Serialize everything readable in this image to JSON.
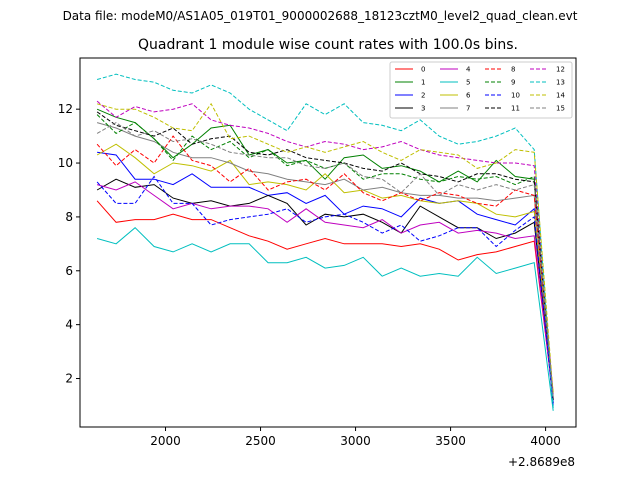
{
  "chart_data": {
    "type": "line",
    "suptitle": "Data file: modeM0/AS1A05_019T01_9000002688_18123cztM0_level2_quad_clean.evt",
    "title": "Quadrant 1 module wise count rates with 100.0s bins.",
    "xlabel": "",
    "ylabel": "",
    "x_offset_label": "+2.8689e8",
    "xlim": [
      1550,
      4160
    ],
    "ylim": [
      0.2,
      13.9
    ],
    "xticks": [
      2000,
      2500,
      3000,
      3500,
      4000
    ],
    "yticks": [
      2,
      4,
      6,
      8,
      10,
      12
    ],
    "x": [
      1640,
      1740,
      1840,
      1940,
      2040,
      2140,
      2240,
      2340,
      2440,
      2540,
      2640,
      2740,
      2840,
      2940,
      3040,
      3140,
      3240,
      3340,
      3440,
      3540,
      3640,
      3740,
      3840,
      3940,
      4040
    ],
    "legend_location": "upper right",
    "series": [
      {
        "name": "0",
        "color": "#ff0000",
        "dashed": false,
        "values": [
          8.6,
          7.8,
          7.9,
          7.9,
          8.1,
          7.9,
          7.9,
          7.6,
          7.3,
          7.1,
          6.8,
          7.0,
          7.2,
          7.0,
          7.0,
          7.0,
          6.9,
          7.0,
          6.8,
          6.4,
          6.6,
          6.7,
          6.9,
          7.1,
          1.3
        ]
      },
      {
        "name": "1",
        "color": "#008000",
        "dashed": false,
        "values": [
          12.0,
          11.7,
          11.5,
          10.9,
          10.2,
          10.7,
          11.3,
          11.4,
          10.3,
          10.5,
          10.0,
          10.1,
          9.4,
          10.2,
          10.3,
          9.8,
          9.9,
          9.7,
          9.3,
          9.7,
          9.3,
          10.1,
          9.5,
          9.4,
          1.1
        ]
      },
      {
        "name": "2",
        "color": "#0000ff",
        "dashed": false,
        "values": [
          10.4,
          10.3,
          9.4,
          9.4,
          9.2,
          9.6,
          9.1,
          9.1,
          9.1,
          8.8,
          8.9,
          8.5,
          8.8,
          8.1,
          8.4,
          8.3,
          8.0,
          8.7,
          8.5,
          8.6,
          8.1,
          7.9,
          7.7,
          8.3,
          1.0
        ]
      },
      {
        "name": "3",
        "color": "#000000",
        "dashed": false,
        "values": [
          9.0,
          9.4,
          9.1,
          9.2,
          8.7,
          8.5,
          8.6,
          8.4,
          8.5,
          8.8,
          8.5,
          7.7,
          8.1,
          8.0,
          8.1,
          7.8,
          7.4,
          8.4,
          8.0,
          7.6,
          7.6,
          7.2,
          7.4,
          7.8,
          1.2
        ]
      },
      {
        "name": "4",
        "color": "#bf00bf",
        "dashed": false,
        "values": [
          9.2,
          9.0,
          9.3,
          8.8,
          8.3,
          8.5,
          8.3,
          8.4,
          8.4,
          8.3,
          7.8,
          8.3,
          7.8,
          7.7,
          7.6,
          7.9,
          7.4,
          7.7,
          7.8,
          7.4,
          7.5,
          7.4,
          7.2,
          7.3,
          1.2
        ]
      },
      {
        "name": "5",
        "color": "#00bfbf",
        "dashed": false,
        "values": [
          7.2,
          7.0,
          7.6,
          6.9,
          6.7,
          7.0,
          6.7,
          7.0,
          7.0,
          6.3,
          6.3,
          6.5,
          6.1,
          6.2,
          6.5,
          5.8,
          6.1,
          5.8,
          5.9,
          5.8,
          6.5,
          5.9,
          6.1,
          6.3,
          0.8
        ]
      },
      {
        "name": "6",
        "color": "#bfbf00",
        "dashed": false,
        "values": [
          10.3,
          10.7,
          10.2,
          9.6,
          10.0,
          9.9,
          9.7,
          10.1,
          9.2,
          9.3,
          9.2,
          9.0,
          9.6,
          8.9,
          9.0,
          8.7,
          8.8,
          8.6,
          8.5,
          8.6,
          8.5,
          8.1,
          8.0,
          8.2,
          1.5
        ]
      },
      {
        "name": "7",
        "color": "#808080",
        "dashed": false,
        "values": [
          11.5,
          11.3,
          11.0,
          10.8,
          10.4,
          10.2,
          10.2,
          10.0,
          9.7,
          9.6,
          9.4,
          9.3,
          9.2,
          9.4,
          9.0,
          9.1,
          8.9,
          8.8,
          8.8,
          8.7,
          8.7,
          8.6,
          8.7,
          8.8,
          1.3
        ]
      },
      {
        "name": "8",
        "color": "#ff0000",
        "dashed": true,
        "values": [
          10.7,
          9.9,
          10.5,
          10.0,
          11.0,
          10.1,
          9.9,
          9.3,
          9.8,
          9.0,
          9.3,
          9.4,
          9.0,
          9.6,
          8.9,
          8.6,
          8.9,
          8.6,
          8.9,
          8.8,
          8.5,
          8.4,
          9.0,
          8.8,
          1.4
        ]
      },
      {
        "name": "9",
        "color": "#008000",
        "dashed": true,
        "values": [
          11.8,
          11.1,
          11.5,
          10.9,
          10.1,
          11.0,
          10.5,
          10.8,
          10.2,
          10.5,
          9.9,
          10.1,
          9.8,
          10.0,
          9.4,
          9.6,
          9.6,
          9.4,
          9.3,
          9.5,
          9.4,
          9.5,
          9.2,
          9.5,
          1.3
        ]
      },
      {
        "name": "10",
        "color": "#0000ff",
        "dashed": true,
        "values": [
          9.3,
          8.5,
          8.5,
          9.5,
          8.5,
          8.5,
          7.7,
          7.9,
          8.0,
          8.1,
          8.3,
          7.8,
          8.0,
          8.1,
          7.8,
          7.4,
          7.7,
          7.1,
          7.3,
          7.6,
          7.6,
          6.9,
          7.5,
          8.0,
          1.1
        ]
      },
      {
        "name": "11",
        "color": "#000000",
        "dashed": true,
        "values": [
          11.9,
          11.4,
          11.2,
          11.0,
          11.3,
          10.7,
          10.9,
          11.0,
          10.4,
          10.3,
          10.5,
          10.2,
          10.1,
          10.0,
          9.8,
          9.7,
          10.0,
          9.6,
          9.5,
          9.3,
          9.6,
          9.6,
          9.4,
          9.3,
          1.2
        ]
      },
      {
        "name": "12",
        "color": "#bf00bf",
        "dashed": true,
        "values": [
          12.3,
          11.7,
          12.1,
          11.9,
          12.0,
          12.2,
          11.6,
          11.4,
          11.3,
          11.1,
          10.8,
          10.6,
          10.8,
          10.7,
          10.5,
          10.6,
          10.8,
          10.5,
          10.3,
          10.2,
          10.1,
          10.0,
          10.0,
          9.9,
          1.3
        ]
      },
      {
        "name": "13",
        "color": "#00bfbf",
        "dashed": true,
        "values": [
          13.1,
          13.3,
          13.1,
          13.0,
          12.7,
          12.6,
          12.9,
          12.6,
          12.0,
          11.6,
          11.2,
          12.2,
          11.8,
          12.2,
          11.5,
          11.4,
          11.2,
          11.6,
          11.0,
          10.7,
          10.8,
          11.0,
          11.3,
          10.5,
          0.9
        ]
      },
      {
        "name": "14",
        "color": "#bfbf00",
        "dashed": true,
        "values": [
          12.2,
          12.0,
          12.0,
          11.7,
          11.3,
          11.2,
          12.2,
          10.9,
          11.0,
          10.7,
          10.4,
          10.6,
          10.4,
          10.6,
          10.8,
          10.4,
          10.1,
          10.5,
          10.4,
          10.3,
          9.8,
          10.0,
          10.5,
          10.4,
          1.4
        ]
      },
      {
        "name": "15",
        "color": "#808080",
        "dashed": true,
        "values": [
          11.1,
          11.5,
          11.0,
          11.2,
          10.8,
          10.9,
          10.7,
          10.4,
          10.3,
          10.2,
          10.2,
          9.9,
          9.8,
          10.0,
          9.5,
          9.4,
          8.9,
          9.6,
          8.8,
          9.2,
          9.0,
          9.2,
          9.0,
          9.2,
          1.3
        ]
      }
    ]
  }
}
